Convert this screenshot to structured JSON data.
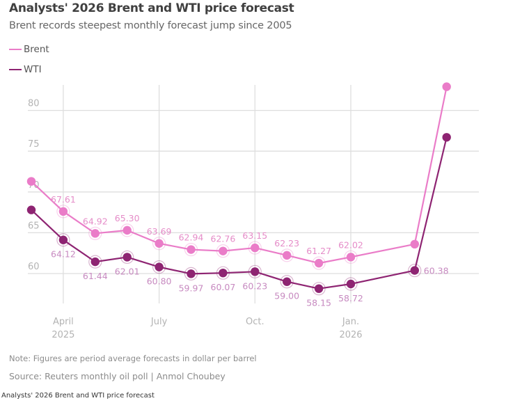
{
  "header": {
    "title": "Analysts' 2026 Brent and WTI price forecast",
    "subtitle": "Brent records steepest monthly forecast jump since 2005"
  },
  "legend": [
    {
      "label": "Brent",
      "color": "#ea7cc8"
    },
    {
      "label": "WTI",
      "color": "#8e2472"
    }
  ],
  "footer": {
    "note": "Note: Figures are period average forecasts in dollar per barrel",
    "source": "Source: Reuters monthly oil poll | Anmol Choubey",
    "caption": "Analysts' 2026 Brent and WTI price forecast"
  },
  "chart_data": {
    "type": "line",
    "title": "Analysts' 2026 Brent and WTI price forecast",
    "subtitle": "Brent records steepest monthly forecast jump since 2005",
    "xlabel": "",
    "ylabel": "",
    "ylim": [
      56,
      84
    ],
    "yticks": [
      60,
      65,
      70,
      75,
      80
    ],
    "grid": true,
    "legend_position": "top-left",
    "x_ticks": [
      {
        "index": 1,
        "label": "April",
        "sublabel": "2025"
      },
      {
        "index": 4,
        "label": "July",
        "sublabel": ""
      },
      {
        "index": 7,
        "label": "Oct.",
        "sublabel": ""
      },
      {
        "index": 10,
        "label": "Jan.",
        "sublabel": "2026"
      }
    ],
    "n_points": 15,
    "series": [
      {
        "name": "Brent",
        "color": "#ea7cc8",
        "label_color": "#e58cc8",
        "values": [
          71.3,
          67.61,
          64.92,
          65.3,
          63.69,
          62.94,
          62.76,
          63.15,
          62.23,
          61.27,
          62.02,
          63.6,
          82.9
        ],
        "labels": [
          null,
          "67.61",
          "64.92",
          "65.30",
          "63.69",
          "62.94",
          "62.76",
          "63.15",
          "62.23",
          "61.27",
          "62.02",
          null,
          null
        ],
        "label_pos": "above",
        "ringed": [
          false,
          true,
          true,
          true,
          true,
          true,
          true,
          true,
          true,
          true,
          true,
          false,
          false
        ]
      },
      {
        "name": "WTI",
        "color": "#8e2472",
        "label_color": "#c78ac0",
        "values": [
          67.8,
          64.12,
          61.44,
          62.01,
          60.8,
          59.97,
          60.07,
          60.23,
          59.0,
          58.15,
          58.72,
          60.38,
          76.7
        ],
        "labels": [
          null,
          "64.12",
          "61.44",
          "62.01",
          "60.80",
          "59.97",
          "60.07",
          "60.23",
          "59.00",
          "58.15",
          "58.72",
          "60.38",
          null
        ],
        "label_pos": "below",
        "ringed": [
          false,
          true,
          true,
          true,
          true,
          true,
          true,
          true,
          true,
          true,
          true,
          true,
          false
        ]
      }
    ]
  }
}
